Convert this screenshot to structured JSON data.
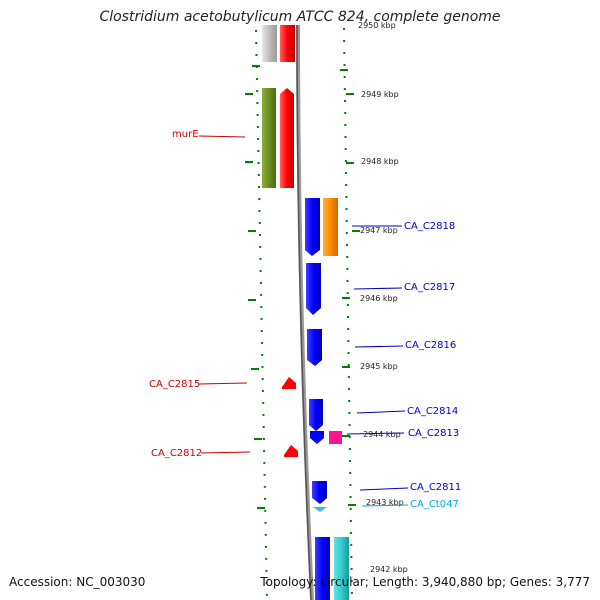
{
  "title": "Clostridium acetobutylicum ATCC 824, complete genome",
  "footer": {
    "accession": "Accession: NC_003030",
    "summary": "Topology: circular; Length: 3,940,880 bp; Genes: 3,777"
  },
  "ticks": [
    "2950 kbp",
    "2949 kbp",
    "2948 kbp",
    "2947 kbp",
    "2946 kbp",
    "2945 kbp",
    "2944 kbp",
    "2943 kbp",
    "2942 kbp"
  ],
  "genes_left": [
    "murE",
    "CA_C2815",
    "CA_C2812"
  ],
  "genes_right": [
    "CA_C2818",
    "CA_C2817",
    "CA_C2816",
    "CA_C2814",
    "CA_C2813",
    "CA_C2811",
    "CA_Ct047"
  ],
  "colors": {
    "forward_gene": "#ff0000",
    "reverse_gene": "#0000ff",
    "olive_feature": "#6b8e23",
    "orange_feature": "#ff8c00",
    "magenta_feature": "#ff1493",
    "cyan_feature": "#33cccc",
    "rna_label": "#00aacc",
    "axis_dots": "#008000",
    "backbone": "#888888"
  }
}
